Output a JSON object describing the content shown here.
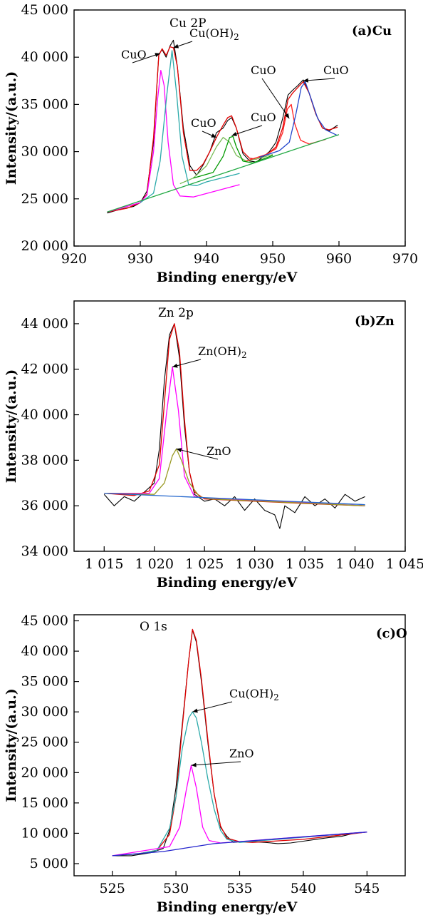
{
  "chart_data": [
    {
      "type": "line",
      "panel_label": "(a)Cu",
      "peak_label": "Cu 2P",
      "xlabel": "Binding energy/eV",
      "ylabel": "Intensity/(a.u.)",
      "xlim": [
        920,
        970
      ],
      "ylim": [
        20000,
        45000
      ],
      "xticks": [
        920,
        930,
        940,
        950,
        960,
        970
      ],
      "xtick_labels": [
        "920",
        "930",
        "940",
        "950",
        "960",
        "970"
      ],
      "yticks": [
        20000,
        25000,
        30000,
        35000,
        40000,
        45000
      ],
      "ytick_labels": [
        "20 000",
        "25 000",
        "30 000",
        "35 000",
        "40 000",
        "45 000"
      ],
      "series": [
        {
          "color": "#000000",
          "role": "raw",
          "x": [
            925,
            927,
            929,
            930,
            931,
            932,
            932.8,
            933.3,
            933.9,
            934.5,
            935,
            935.6,
            936.5,
            937.5,
            938.5,
            939.5,
            940.5,
            941.5,
            942.5,
            943.2,
            943.8,
            944.5,
            945.5,
            946.5,
            947.5,
            948.5,
            949.5,
            950.5,
            951.5,
            952.3,
            953,
            953.8,
            954.6,
            955.5,
            956.5,
            957.5,
            958.5,
            959.8
          ],
          "y": [
            23500,
            23900,
            24200,
            24600,
            25800,
            31000,
            40300,
            40800,
            40000,
            41200,
            41800,
            39000,
            32500,
            28500,
            27500,
            28600,
            30000,
            32000,
            32500,
            33300,
            33600,
            32500,
            29800,
            29000,
            28900,
            29400,
            30000,
            31000,
            33500,
            36000,
            36500,
            37000,
            37600,
            36200,
            34000,
            32500,
            32200,
            32800
          ]
        },
        {
          "color": "#e00000",
          "role": "fit",
          "x": [
            925,
            928,
            930,
            931,
            932,
            932.8,
            933.3,
            933.9,
            934.5,
            935,
            935.6,
            936.5,
            937.5,
            938.5,
            939.5,
            940.5,
            941.5,
            942.5,
            943.2,
            943.8,
            944.5,
            945.5,
            946.5,
            947.5,
            948.5,
            949.5,
            950.5,
            951.5,
            952.3,
            953,
            953.8,
            954.6,
            955.5,
            956.5,
            957.5,
            958.5,
            959.8
          ],
          "y": [
            23600,
            24000,
            24600,
            25500,
            31500,
            40200,
            40900,
            40200,
            41100,
            41000,
            39000,
            32000,
            28000,
            28000,
            28700,
            30000,
            31500,
            32800,
            33600,
            33800,
            32500,
            30000,
            29300,
            29200,
            29500,
            29900,
            30500,
            32500,
            35500,
            36200,
            36800,
            37400,
            36200,
            34000,
            32500,
            32300,
            32600
          ]
        },
        {
          "color": "#ff00ff",
          "role": "component",
          "name": "CuO",
          "x": [
            925,
            930,
            931,
            932,
            932.6,
            933.1,
            933.6,
            934.2,
            935,
            936,
            938,
            945
          ],
          "y": [
            23600,
            24600,
            25400,
            30000,
            35500,
            38600,
            37000,
            31000,
            26500,
            25300,
            25200,
            26500
          ]
        },
        {
          "color": "#2aa9a9",
          "role": "component",
          "name": "Cu(OH)2",
          "x": [
            930,
            932,
            933,
            934,
            934.8,
            935.5,
            936.3,
            937.3,
            938.5,
            940,
            945
          ],
          "y": [
            24600,
            25600,
            29000,
            36000,
            40700,
            36000,
            29500,
            26500,
            26400,
            26800,
            27700
          ]
        },
        {
          "color": "#77bb55",
          "role": "component",
          "name": "CuO",
          "x": [
            936,
            938,
            940,
            941.5,
            942.5,
            943.5,
            944.5,
            946,
            948,
            950
          ],
          "y": [
            26600,
            27200,
            28500,
            30500,
            31500,
            31000,
            29600,
            29000,
            29300,
            29700
          ]
        },
        {
          "color": "#009900",
          "role": "component",
          "name": "CuO",
          "x": [
            938,
            941,
            942.5,
            943.5,
            944,
            944.5,
            945.5,
            947,
            950
          ],
          "y": [
            27200,
            27800,
            29500,
            31500,
            31600,
            30500,
            29000,
            28800,
            29600
          ]
        },
        {
          "color": "#ff2020",
          "role": "component",
          "name": "CuO",
          "x": [
            946,
            949,
            950.5,
            951.5,
            952.2,
            952.8,
            953.3,
            954.2,
            955.5,
            958
          ],
          "y": [
            29000,
            29700,
            30300,
            32000,
            34500,
            35000,
            33000,
            31200,
            30800,
            31300
          ]
        },
        {
          "color": "#2244cc",
          "role": "component",
          "name": "CuO",
          "x": [
            948,
            951,
            952.5,
            953.5,
            954.3,
            954.9,
            955.6,
            956.8,
            958,
            959.8
          ],
          "y": [
            29400,
            30100,
            31000,
            34000,
            36800,
            37400,
            36000,
            33500,
            32300,
            31700
          ]
        },
        {
          "color": "#22aa44",
          "role": "background",
          "x": [
            925,
            960
          ],
          "y": [
            23600,
            31800
          ]
        }
      ],
      "annotations": [
        {
          "text": "CuO",
          "x": 933,
          "y": 40400
        },
        {
          "text": "Cu(OH)2",
          "x": 935,
          "y": 41000
        },
        {
          "text": "CuO",
          "x": 941.5,
          "y": 31500
        },
        {
          "text": "CuO",
          "x": 943.8,
          "y": 31700
        },
        {
          "text": "CuO",
          "x": 952.5,
          "y": 33500
        },
        {
          "text": "CuO",
          "x": 954.6,
          "y": 37500
        }
      ]
    },
    {
      "type": "line",
      "panel_label": "(b)Zn",
      "peak_label": "Zn 2p",
      "xlabel": "Binding energy/eV",
      "ylabel": "Intensity/(a.u.)",
      "xlim": [
        1012,
        1045
      ],
      "ylim": [
        34000,
        45000
      ],
      "xticks": [
        1015,
        1020,
        1025,
        1030,
        1035,
        1040,
        1045
      ],
      "xtick_labels": [
        "1 015",
        "1 020",
        "1 025",
        "1 030",
        "1 035",
        "1 040",
        "1 045"
      ],
      "yticks": [
        34000,
        36000,
        38000,
        40000,
        42000,
        44000
      ],
      "ytick_labels": [
        "34 000",
        "36 000",
        "38 000",
        "40 000",
        "42 000",
        "44 000"
      ],
      "series": [
        {
          "color": "#000000",
          "role": "raw",
          "x": [
            1015,
            1016,
            1017,
            1018,
            1019,
            1020,
            1020.5,
            1021,
            1021.5,
            1022,
            1022.5,
            1023,
            1023.5,
            1024,
            1025,
            1026,
            1027,
            1028,
            1029,
            1030,
            1031,
            1032,
            1032.5,
            1033,
            1034,
            1035,
            1036,
            1037,
            1038,
            1039,
            1040,
            1041
          ],
          "y": [
            36500,
            36000,
            36400,
            36200,
            36600,
            37000,
            38500,
            41500,
            43500,
            44000,
            42500,
            39500,
            37500,
            36500,
            36200,
            36300,
            36000,
            36400,
            35800,
            36300,
            35800,
            35600,
            35000,
            36000,
            35700,
            36400,
            36000,
            36300,
            35900,
            36500,
            36200,
            36400
          ]
        },
        {
          "color": "#e00000",
          "role": "fit",
          "x": [
            1015,
            1018,
            1019.5,
            1020.5,
            1021,
            1021.5,
            1022,
            1022.5,
            1023,
            1023.5,
            1024,
            1025,
            1030,
            1035,
            1041
          ],
          "y": [
            36550,
            36450,
            36650,
            37800,
            40500,
            43300,
            44000,
            42800,
            39800,
            37500,
            36600,
            36300,
            36200,
            36100,
            36000
          ]
        },
        {
          "color": "#ff00ff",
          "role": "component",
          "name": "Zn(OH)2",
          "x": [
            1015,
            1019.5,
            1020.5,
            1021.2,
            1021.8,
            1022.4,
            1023,
            1024,
            1025,
            1041
          ],
          "y": [
            36550,
            36550,
            37200,
            40000,
            42100,
            40200,
            37300,
            36400,
            36350,
            36000
          ]
        },
        {
          "color": "#999922",
          "role": "component",
          "name": "ZnO",
          "x": [
            1015,
            1020,
            1021,
            1021.8,
            1022.2,
            1022.7,
            1023.5,
            1024.5,
            1025.5,
            1041
          ],
          "y": [
            36550,
            36500,
            37000,
            38200,
            38500,
            38000,
            37000,
            36400,
            36300,
            36000
          ]
        },
        {
          "color": "#2266cc",
          "role": "background",
          "x": [
            1015,
            1041
          ],
          "y": [
            36550,
            36050
          ]
        }
      ],
      "annotations": [
        {
          "text": "Zn(OH)2",
          "x": 1021.8,
          "y": 42100
        },
        {
          "text": "ZnO",
          "x": 1022.2,
          "y": 38500
        }
      ]
    },
    {
      "type": "line",
      "panel_label": "(c)O",
      "peak_label": "O 1s",
      "xlabel": "Binding energy/eV",
      "ylabel": "Intensity/(a.u.)",
      "xlim": [
        522,
        548
      ],
      "ylim": [
        3000,
        46000
      ],
      "xticks": [
        525,
        530,
        535,
        540,
        545
      ],
      "xtick_labels": [
        "525",
        "530",
        "535",
        "540",
        "545"
      ],
      "yticks": [
        5000,
        10000,
        15000,
        20000,
        25000,
        30000,
        35000,
        40000,
        45000
      ],
      "ytick_labels": [
        "5 000",
        "10 000",
        "15 000",
        "20 000",
        "25 000",
        "30 000",
        "35 000",
        "40 000",
        "45 000"
      ],
      "series": [
        {
          "color": "#000000",
          "role": "raw",
          "x": [
            525,
            526.5,
            528,
            529,
            529.5,
            530,
            530.5,
            531,
            531.3,
            531.6,
            532,
            532.5,
            533,
            533.5,
            534,
            534.5,
            535,
            536,
            537,
            538,
            539,
            540,
            541,
            542,
            543,
            544,
            545
          ],
          "y": [
            6300,
            6300,
            6800,
            7500,
            10500,
            17500,
            28000,
            38500,
            43500,
            41500,
            35000,
            25000,
            16500,
            11000,
            9500,
            8500,
            8600,
            8600,
            8500,
            8300,
            8400,
            8700,
            9000,
            9300,
            9500,
            10000,
            10200
          ]
        },
        {
          "color": "#e00000",
          "role": "fit",
          "x": [
            525,
            527,
            528.5,
            529.5,
            530,
            530.5,
            531,
            531.3,
            531.6,
            532,
            532.5,
            533,
            533.5,
            534,
            535,
            536,
            540,
            545
          ],
          "y": [
            6300,
            6600,
            7200,
            9800,
            16000,
            27500,
            38500,
            43600,
            41800,
            35500,
            25500,
            16500,
            11200,
            9200,
            8600,
            8500,
            9000,
            10200
          ]
        },
        {
          "color": "#2aa9a9",
          "role": "component",
          "name": "Cu(OH)2",
          "x": [
            525,
            527,
            528.5,
            529.5,
            530,
            530.5,
            531,
            531.3,
            531.6,
            532,
            532.5,
            533,
            533.5,
            534,
            535,
            545
          ],
          "y": [
            6300,
            6600,
            7200,
            10800,
            16000,
            24000,
            29000,
            30000,
            29000,
            25000,
            19000,
            14000,
            10500,
            9000,
            8500,
            10200
          ]
        },
        {
          "color": "#ff00ff",
          "role": "component",
          "name": "ZnO",
          "x": [
            525,
            529.5,
            530.3,
            530.8,
            531.2,
            531.6,
            532.1,
            532.6,
            533.5,
            545
          ],
          "y": [
            6300,
            7800,
            11000,
            17000,
            21200,
            17500,
            11000,
            8800,
            8400,
            10200
          ]
        },
        {
          "color": "#2222cc",
          "role": "background",
          "x": [
            525,
            529,
            533,
            545
          ],
          "y": [
            6300,
            7000,
            8300,
            10200
          ]
        }
      ],
      "annotations": [
        {
          "text": "Cu(OH)2",
          "x": 531.3,
          "y": 30000
        },
        {
          "text": "ZnO",
          "x": 531.2,
          "y": 21200
        }
      ]
    }
  ]
}
